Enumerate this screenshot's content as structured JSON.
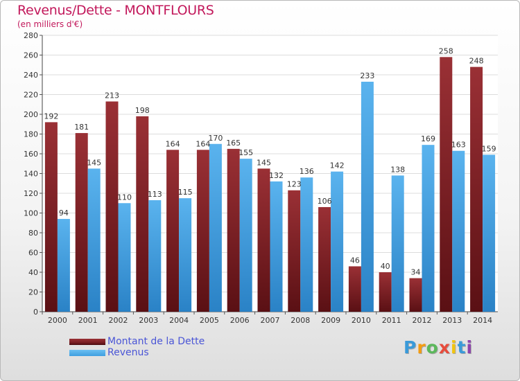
{
  "header": {
    "title": "Revenus/Dette - MONTFLOURS",
    "subtitle": "(en milliers d'€)"
  },
  "chart_data": {
    "type": "bar",
    "categories": [
      "2000",
      "2001",
      "2002",
      "2003",
      "2004",
      "2005",
      "2006",
      "2007",
      "2008",
      "2009",
      "2010",
      "2011",
      "2012",
      "2013",
      "2014"
    ],
    "series": [
      {
        "name": "Montant de la Dette",
        "color": "#7a1f24",
        "values": [
          192,
          181,
          213,
          198,
          164,
          164,
          165,
          145,
          123,
          106,
          46,
          40,
          34,
          258,
          248
        ]
      },
      {
        "name": "Revenus",
        "color": "#3f9ee0",
        "values": [
          94,
          145,
          110,
          113,
          115,
          170,
          155,
          132,
          136,
          142,
          233,
          138,
          169,
          163,
          159
        ]
      }
    ],
    "ylim": [
      0,
      280
    ],
    "yticks": [
      0,
      20,
      40,
      60,
      80,
      100,
      120,
      140,
      160,
      180,
      200,
      220,
      240,
      260,
      280
    ],
    "grid": true,
    "legend": "bottom-left"
  },
  "logo": {
    "letters": [
      "P",
      "r",
      "o",
      "x",
      "i",
      "t",
      "i"
    ],
    "colors": [
      "#3a9ad9",
      "#f39c12",
      "#5cb85c",
      "#e74c3c",
      "#f1c40f",
      "#3a9ad9",
      "#8e44ad"
    ]
  }
}
